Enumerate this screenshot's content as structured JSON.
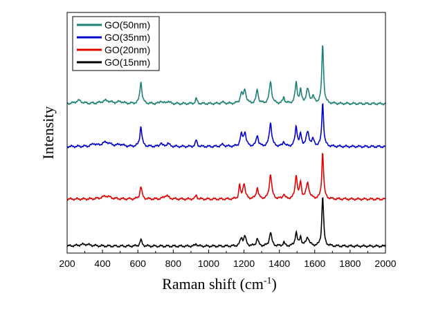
{
  "chart_data": {
    "type": "line",
    "title": "",
    "xlabel": "Raman shift (cm",
    "xlabel_sup": "-1",
    "xlabel_close": ")",
    "ylabel": "Intensity",
    "xlim": [
      200,
      2000
    ],
    "xticks": [
      200,
      400,
      600,
      800,
      1000,
      1200,
      1400,
      1600,
      1800,
      2000
    ],
    "grid": false,
    "legend_position": "top-left",
    "series": [
      {
        "name": "GO(50nm)",
        "color": "#1a8074",
        "offset": 3,
        "peaks": [
          [
            265,
            0.05,
            20
          ],
          [
            420,
            0.05,
            30
          ],
          [
            500,
            0.03,
            18
          ],
          [
            617,
            0.35,
            7
          ],
          [
            730,
            0.05,
            6
          ],
          [
            770,
            0.04,
            10
          ],
          [
            930,
            0.08,
            6
          ],
          [
            1080,
            0.02,
            15
          ],
          [
            1185,
            0.15,
            8
          ],
          [
            1205,
            0.22,
            8
          ],
          [
            1275,
            0.22,
            7
          ],
          [
            1350,
            0.35,
            8
          ],
          [
            1425,
            0.1,
            6
          ],
          [
            1495,
            0.33,
            7
          ],
          [
            1520,
            0.2,
            6
          ],
          [
            1560,
            0.22,
            10
          ],
          [
            1590,
            0.1,
            8
          ],
          [
            1645,
            0.95,
            6
          ]
        ]
      },
      {
        "name": "GO(35nm)",
        "color": "#0000cc",
        "offset": 2,
        "peaks": [
          [
            350,
            0.04,
            12
          ],
          [
            420,
            0.07,
            30
          ],
          [
            500,
            0.03,
            18
          ],
          [
            617,
            0.32,
            7
          ],
          [
            730,
            0.06,
            6
          ],
          [
            770,
            0.05,
            10
          ],
          [
            930,
            0.1,
            6
          ],
          [
            1080,
            0.03,
            12
          ],
          [
            1185,
            0.18,
            8
          ],
          [
            1205,
            0.22,
            8
          ],
          [
            1275,
            0.18,
            7
          ],
          [
            1350,
            0.38,
            8
          ],
          [
            1425,
            0.08,
            6
          ],
          [
            1495,
            0.32,
            7
          ],
          [
            1520,
            0.18,
            6
          ],
          [
            1560,
            0.22,
            10
          ],
          [
            1590,
            0.1,
            8
          ],
          [
            1645,
            0.7,
            6
          ]
        ]
      },
      {
        "name": "GO(20nm)",
        "color": "#e00000",
        "offset": 1,
        "peaks": [
          [
            420,
            0.05,
            30
          ],
          [
            617,
            0.2,
            7
          ],
          [
            760,
            0.06,
            15
          ],
          [
            930,
            0.06,
            6
          ],
          [
            1175,
            0.22,
            5
          ],
          [
            1200,
            0.25,
            8
          ],
          [
            1275,
            0.18,
            7
          ],
          [
            1350,
            0.4,
            8
          ],
          [
            1425,
            0.08,
            6
          ],
          [
            1495,
            0.38,
            7
          ],
          [
            1520,
            0.25,
            6
          ],
          [
            1560,
            0.25,
            10
          ],
          [
            1645,
            0.75,
            6
          ]
        ]
      },
      {
        "name": "GO(15nm)",
        "color": "#000000",
        "offset": 0,
        "peaks": [
          [
            300,
            0.03,
            40
          ],
          [
            617,
            0.1,
            7
          ],
          [
            930,
            0.04,
            6
          ],
          [
            1185,
            0.12,
            8
          ],
          [
            1205,
            0.15,
            8
          ],
          [
            1275,
            0.12,
            7
          ],
          [
            1350,
            0.22,
            8
          ],
          [
            1425,
            0.06,
            6
          ],
          [
            1495,
            0.22,
            7
          ],
          [
            1520,
            0.14,
            6
          ],
          [
            1560,
            0.14,
            10
          ],
          [
            1645,
            0.8,
            6
          ]
        ]
      }
    ]
  }
}
